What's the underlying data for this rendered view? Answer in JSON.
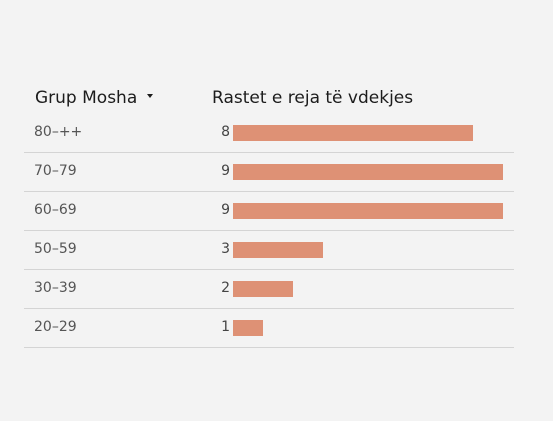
{
  "header": {
    "group_label": "Grup Mosha",
    "value_label": "Rastet e reja të vdekjes"
  },
  "colors": {
    "bar": "#de9175",
    "background": "#f3f3f3",
    "divider": "#d4d4d4"
  },
  "icons": {
    "sort": "caret-down-icon"
  },
  "chart_data": {
    "type": "table",
    "columns": [
      "Grup Mosha",
      "Rastet e reja të vdekjes"
    ],
    "categories": [
      "80–++",
      "70–79",
      "60–69",
      "50–59",
      "30–39",
      "20–29"
    ],
    "values": [
      8,
      9,
      9,
      3,
      2,
      1
    ],
    "bar_max": 9
  }
}
